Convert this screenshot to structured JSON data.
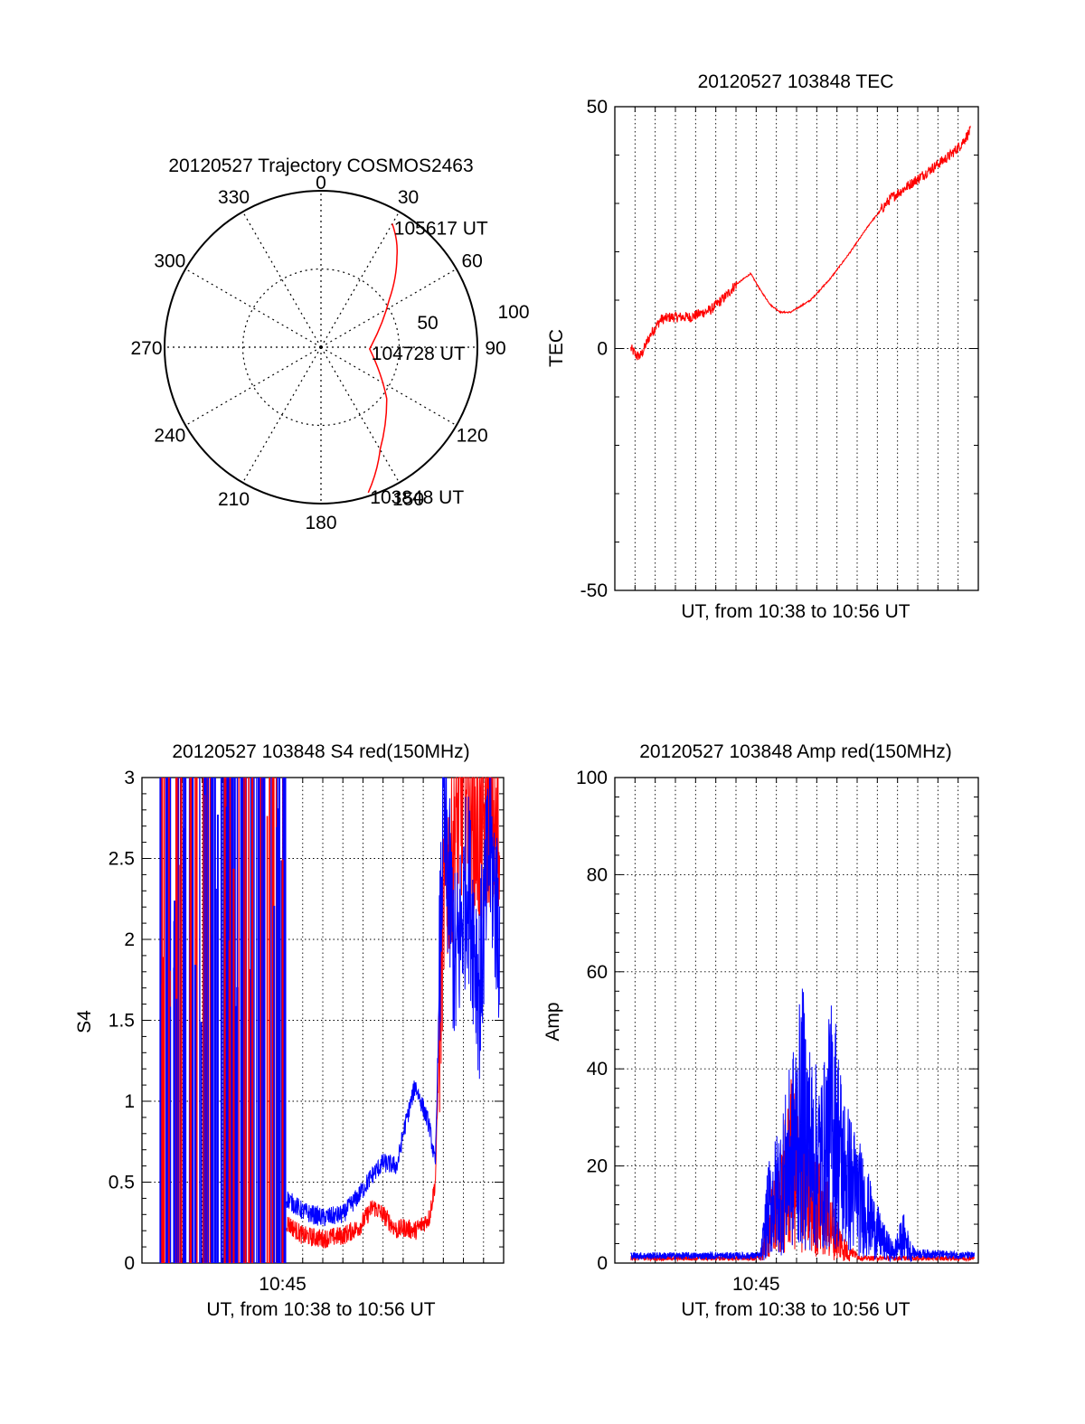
{
  "chart_data": [
    {
      "type": "polar",
      "title": "20120527 Trajectory COSMOS2463",
      "azimuth_labels": [
        "0",
        "30",
        "60",
        "90",
        "120",
        "150",
        "180",
        "210",
        "240",
        "270",
        "300",
        "330"
      ],
      "radial_labels": [
        "50",
        "100"
      ],
      "colors": {
        "trajectory": "#ff0000"
      },
      "series": [
        {
          "points": [
            {
              "az": 162,
              "el": 2
            },
            {
              "az": 150,
              "el": 22
            },
            {
              "az": 128,
              "el": 42
            },
            {
              "az": 92,
              "el": 62
            },
            {
              "az": 55,
              "el": 42
            },
            {
              "az": 40,
              "el": 22
            },
            {
              "az": 30,
              "el": 8
            }
          ]
        }
      ],
      "annotations": [
        {
          "text": "103848 UT",
          "az": 162,
          "el": 2
        },
        {
          "text": "104728 UT",
          "az": 92,
          "el": 62
        },
        {
          "text": "105617 UT",
          "az": 30,
          "el": 8
        }
      ]
    },
    {
      "type": "line",
      "title": "20120527 103848 TEC",
      "xlabel": "UT, from 10:38 to 10:56 UT",
      "ylabel": "TEC",
      "ylim": [
        -50,
        50
      ],
      "yticks": [
        "50",
        "0",
        "-50"
      ],
      "grid": true,
      "colors": {
        "line": "#ff0000"
      },
      "series": [
        {
          "x": [
            0,
            0.3,
            0.5,
            1.0,
            1.5,
            2.0,
            3.0,
            4.0,
            4.8,
            5.2,
            6.0,
            6.5,
            7.0,
            7.5,
            8.0,
            9.0,
            10.0,
            11.0,
            12.0,
            13.0,
            14.0,
            15.0,
            16.0,
            16.5,
            17.0
          ],
          "y": [
            0,
            -1.5,
            -1.5,
            3,
            6,
            6.5,
            6.5,
            8,
            11,
            13,
            15.5,
            12,
            9,
            7.5,
            7.5,
            10,
            14.5,
            20,
            26,
            31,
            34,
            37,
            40,
            42,
            45
          ]
        }
      ]
    },
    {
      "type": "line",
      "title": "20120527 103848 S4 red(150MHz)",
      "xlabel": "UT, from 10:38 to 10:56 UT",
      "xtick": "10:45",
      "ylabel": "S4",
      "ylim": [
        0,
        3
      ],
      "yticks": [
        "3",
        "2.5",
        "2",
        "1.5",
        "1",
        "0.5",
        "0"
      ],
      "grid": true,
      "series": [
        {
          "color": "#0000ff",
          "x": [
            7.2,
            8.0,
            9.0,
            10.0,
            10.8,
            11.5,
            12.0,
            12.7,
            13.0,
            13.6,
            14.3,
            14.6,
            15.0,
            15.6,
            16.2,
            16.8,
            17.3,
            17.8
          ],
          "y": [
            0.4,
            0.32,
            0.28,
            0.3,
            0.42,
            0.55,
            0.62,
            0.6,
            0.8,
            1.1,
            0.85,
            0.6,
            2.8,
            1.8,
            2.4,
            1.7,
            2.6,
            2.0
          ]
        },
        {
          "color": "#ff0000",
          "x": [
            7.2,
            8.0,
            9.0,
            10.0,
            10.8,
            11.5,
            12.0,
            12.7,
            13.0,
            13.6,
            14.3,
            14.6,
            15.0,
            15.6,
            16.2,
            16.8,
            17.3,
            17.8
          ],
          "y": [
            0.25,
            0.17,
            0.15,
            0.17,
            0.22,
            0.35,
            0.3,
            0.2,
            0.22,
            0.2,
            0.28,
            0.5,
            2.2,
            2.7,
            2.9,
            2.6,
            2.8,
            2.5
          ]
        }
      ]
    },
    {
      "type": "line",
      "title": "20120527 103848 Amp red(150MHz)",
      "xlabel": "UT, from 10:38 to 10:56 UT",
      "xtick": "10:45",
      "ylabel": "Amp",
      "ylim": [
        0,
        100
      ],
      "yticks": [
        "100",
        "80",
        "60",
        "40",
        "20",
        "0"
      ],
      "grid": true,
      "series": [
        {
          "color": "#ff0000",
          "x": [
            0,
            6.4,
            6.8,
            7.5,
            8.0,
            8.5,
            9.0,
            9.5,
            10.0,
            10.5,
            11.0,
            11.4,
            12.0,
            17.0
          ],
          "y": [
            1,
            1,
            12,
            25,
            38,
            28,
            22,
            20,
            12,
            6,
            2,
            1,
            1,
            1
          ]
        },
        {
          "color": "#0000ff",
          "x": [
            0,
            6.4,
            6.8,
            7.5,
            8.0,
            8.5,
            9.0,
            9.5,
            10.0,
            10.5,
            11.0,
            11.5,
            12.0,
            12.5,
            13.0,
            13.5,
            14.0,
            17.0
          ],
          "y": [
            1.5,
            1.5,
            20,
            30,
            42,
            55,
            40,
            38,
            55,
            35,
            28,
            22,
            14,
            8,
            4,
            10,
            2,
            1.5
          ]
        }
      ]
    }
  ]
}
